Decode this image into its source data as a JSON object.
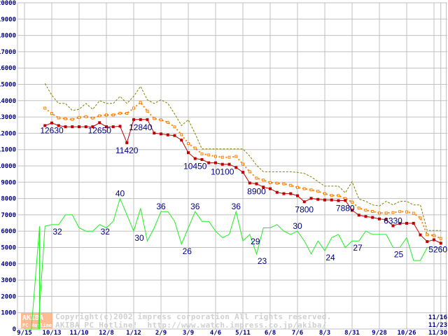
{
  "chart_data": {
    "type": "line",
    "title": "",
    "xlabel": "",
    "ylabel": "",
    "ylim": [
      0,
      20000
    ],
    "yticks": [
      0,
      1000,
      2000,
      3000,
      4000,
      5000,
      6000,
      7000,
      8000,
      9000,
      10000,
      11000,
      12000,
      13000,
      14000,
      15000,
      16000,
      17000,
      18000,
      19000,
      20000
    ],
    "grid": true,
    "x_count": 62,
    "x_ticks": [
      {
        "i": 0,
        "label": "9/15"
      },
      {
        "i": 4,
        "label": "10/13"
      },
      {
        "i": 8,
        "label": "11/10"
      },
      {
        "i": 12,
        "label": "12/8"
      },
      {
        "i": 16,
        "label": "1/12"
      },
      {
        "i": 20,
        "label": "2/9"
      },
      {
        "i": 24,
        "label": "3/9"
      },
      {
        "i": 28,
        "label": "4/6"
      },
      {
        "i": 32,
        "label": "5/11"
      },
      {
        "i": 36,
        "label": "6/8"
      },
      {
        "i": 40,
        "label": "7/6"
      },
      {
        "i": 44,
        "label": "8/3"
      },
      {
        "i": 48,
        "label": "8/31"
      },
      {
        "i": 52,
        "label": "9/28"
      },
      {
        "i": 56,
        "label": "10/26"
      },
      {
        "i": 60,
        "label": "11/16"
      },
      {
        "i": 61,
        "label": "11/23"
      },
      {
        "i": 61.8,
        "label": "11/30"
      }
    ],
    "series": [
      {
        "name": "max",
        "color": "#808000",
        "style": "dashed",
        "values": [
          null,
          null,
          null,
          15050,
          14330,
          13830,
          13830,
          13400,
          13470,
          13830,
          13470,
          14000,
          13830,
          13830,
          14260,
          13830,
          14260,
          14880,
          14050,
          13830,
          14050,
          13830,
          13190,
          12470,
          12830,
          11970,
          11040,
          11040,
          11040,
          11040,
          11040,
          11040,
          11040,
          10600,
          10040,
          9640,
          9640,
          9640,
          9640,
          9640,
          9600,
          9540,
          9330,
          9040,
          8760,
          8760,
          8760,
          8350,
          9040,
          7970,
          7830,
          7610,
          7540,
          7830,
          7610,
          7830,
          7830,
          7610,
          7610,
          6040,
          6040,
          6040
        ]
      },
      {
        "name": "average",
        "color": "#ff8000",
        "style": "dotted-hollow-square",
        "values": [
          null,
          null,
          null,
          13540,
          13210,
          12940,
          12890,
          12850,
          12970,
          13020,
          12930,
          13070,
          13120,
          13120,
          13230,
          13220,
          13540,
          13890,
          13360,
          12900,
          12820,
          12670,
          12390,
          11910,
          11370,
          11090,
          10740,
          10670,
          10580,
          10530,
          10530,
          10580,
          10110,
          9640,
          9250,
          9130,
          8980,
          8940,
          8900,
          8810,
          8680,
          8600,
          8530,
          8440,
          8300,
          8180,
          8180,
          8000,
          7780,
          7410,
          7280,
          7210,
          7110,
          7110,
          7140,
          7200,
          7180,
          7100,
          6810,
          5780,
          5730,
          5550
        ]
      },
      {
        "name": "min",
        "color": "#c00000",
        "style": "solid-square",
        "values": [
          null,
          null,
          null,
          12470,
          12630,
          12470,
          12400,
          12400,
          12400,
          12400,
          12400,
          12650,
          12400,
          12400,
          12430,
          11420,
          12840,
          12840,
          12840,
          12010,
          11960,
          11900,
          11860,
          11580,
          10810,
          10450,
          10390,
          10190,
          10190,
          10100,
          10100,
          9900,
          9610,
          8950,
          8900,
          8700,
          8600,
          8380,
          8300,
          8300,
          8170,
          7800,
          8010,
          7950,
          7910,
          7910,
          7870,
          7880,
          7280,
          6980,
          6900,
          6840,
          6750,
          6710,
          6330,
          6470,
          6480,
          6480,
          5770,
          5360,
          5470,
          5260
        ]
      },
      {
        "name": "count",
        "color": "#22ee22",
        "style": "solid",
        "scale": 200,
        "values": [
          0,
          0,
          0,
          31.5,
          32,
          32,
          35,
          35,
          31,
          30,
          30,
          32,
          31,
          33,
          40,
          35,
          30,
          37,
          27,
          31,
          36,
          36,
          33,
          26,
          31,
          36,
          33,
          33,
          30,
          28,
          29,
          36,
          27,
          29,
          23,
          31,
          31,
          32,
          30,
          29,
          30,
          27,
          23,
          27,
          24,
          28,
          29,
          25,
          27,
          27,
          30,
          29,
          29,
          29,
          25,
          25,
          28,
          21,
          21,
          25,
          25,
          25
        ]
      }
    ],
    "annotations": [
      {
        "series": "min",
        "i": 4,
        "text": "12630",
        "pos": "below"
      },
      {
        "series": "min",
        "i": 11,
        "text": "12650",
        "pos": "below"
      },
      {
        "series": "min",
        "i": 15,
        "text": "11420",
        "pos": "below"
      },
      {
        "series": "min",
        "i": 17,
        "text": "12840",
        "pos": "below"
      },
      {
        "series": "min",
        "i": 25,
        "text": "10450",
        "pos": "below"
      },
      {
        "series": "min",
        "i": 29,
        "text": "10100",
        "pos": "below"
      },
      {
        "series": "min",
        "i": 34,
        "text": "8900",
        "pos": "below"
      },
      {
        "series": "min",
        "i": 41,
        "text": "7800",
        "pos": "below"
      },
      {
        "series": "min",
        "i": 47,
        "text": "7880",
        "pos": "below"
      },
      {
        "series": "min",
        "i": 54,
        "text": "6330",
        "pos": "above"
      },
      {
        "series": "min",
        "i": 61,
        "text": "5260",
        "pos": "below-right"
      },
      {
        "series": "count",
        "i": 4,
        "text": "32",
        "pos": "below"
      },
      {
        "series": "count",
        "i": 11,
        "text": "32",
        "pos": "below"
      },
      {
        "series": "count",
        "i": 14,
        "text": "40",
        "pos": "above"
      },
      {
        "series": "count",
        "i": 16,
        "text": "30",
        "pos": "below"
      },
      {
        "series": "count",
        "i": 20,
        "text": "36",
        "pos": "above"
      },
      {
        "series": "count",
        "i": 23,
        "text": "26",
        "pos": "below"
      },
      {
        "series": "count",
        "i": 25,
        "text": "36",
        "pos": "above"
      },
      {
        "series": "count",
        "i": 31,
        "text": "36",
        "pos": "above"
      },
      {
        "series": "count",
        "i": 33,
        "text": "29",
        "pos": "below"
      },
      {
        "series": "count",
        "i": 34,
        "text": "23",
        "pos": "below"
      },
      {
        "series": "count",
        "i": 40,
        "text": "30",
        "pos": "above"
      },
      {
        "series": "count",
        "i": 44,
        "text": "24",
        "pos": "below"
      },
      {
        "series": "count",
        "i": 48,
        "text": "27",
        "pos": "below"
      },
      {
        "series": "count",
        "i": 54,
        "text": "25",
        "pos": "below"
      }
    ]
  },
  "watermark": {
    "copyright": "Copyright(c)2002 impress corporation All rights reserved.",
    "site": "AKIBA PC Hotline!  http://www.watch.impress.co.jp/akiba/",
    "logo_top": "AKIBA",
    "logo_bottom": "PC Hotline!"
  }
}
